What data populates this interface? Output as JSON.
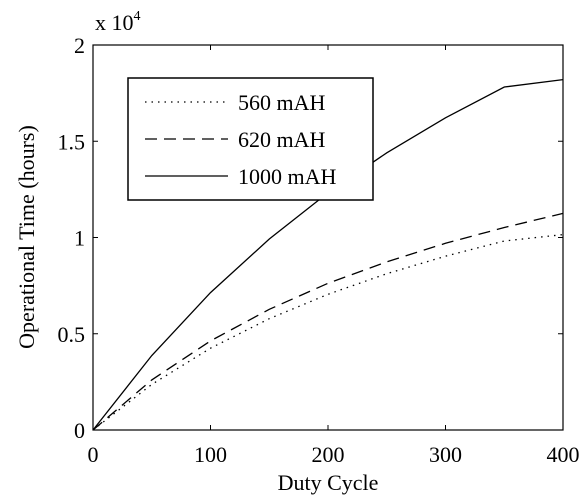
{
  "chart_data": {
    "type": "line",
    "title": "",
    "xlabel": "Duty Cycle",
    "ylabel": "Operational Time (hours)",
    "y_multiplier_base": "x 10",
    "y_multiplier_exp": "4",
    "xlim": [
      0,
      400
    ],
    "ylim": [
      0,
      2
    ],
    "xticks": [
      0,
      100,
      200,
      300,
      400
    ],
    "xtick_labels": [
      "0",
      "100",
      "200",
      "300",
      "400"
    ],
    "yticks": [
      0,
      0.5,
      1,
      1.5,
      2
    ],
    "ytick_labels": [
      "0",
      "0.5",
      "1",
      "1.5",
      "2"
    ],
    "grid": false,
    "legend_position": "top-left",
    "x": [
      0,
      50,
      100,
      150,
      200,
      250,
      300,
      350,
      400
    ],
    "series": [
      {
        "name": "560 mAH",
        "style": "dotted",
        "color": "#000000",
        "values": [
          0,
          0.237,
          0.425,
          0.578,
          0.705,
          0.812,
          0.903,
          0.982,
          1.015
        ]
      },
      {
        "name": "620 mAH",
        "style": "dashed",
        "color": "#000000",
        "values": [
          0,
          0.26,
          0.463,
          0.627,
          0.762,
          0.874,
          0.97,
          1.052,
          1.125
        ]
      },
      {
        "name": "1000 mAH",
        "style": "solid",
        "color": "#000000",
        "values": [
          0,
          0.387,
          0.714,
          0.992,
          1.232,
          1.44,
          1.622,
          1.782,
          1.82
        ]
      }
    ]
  }
}
